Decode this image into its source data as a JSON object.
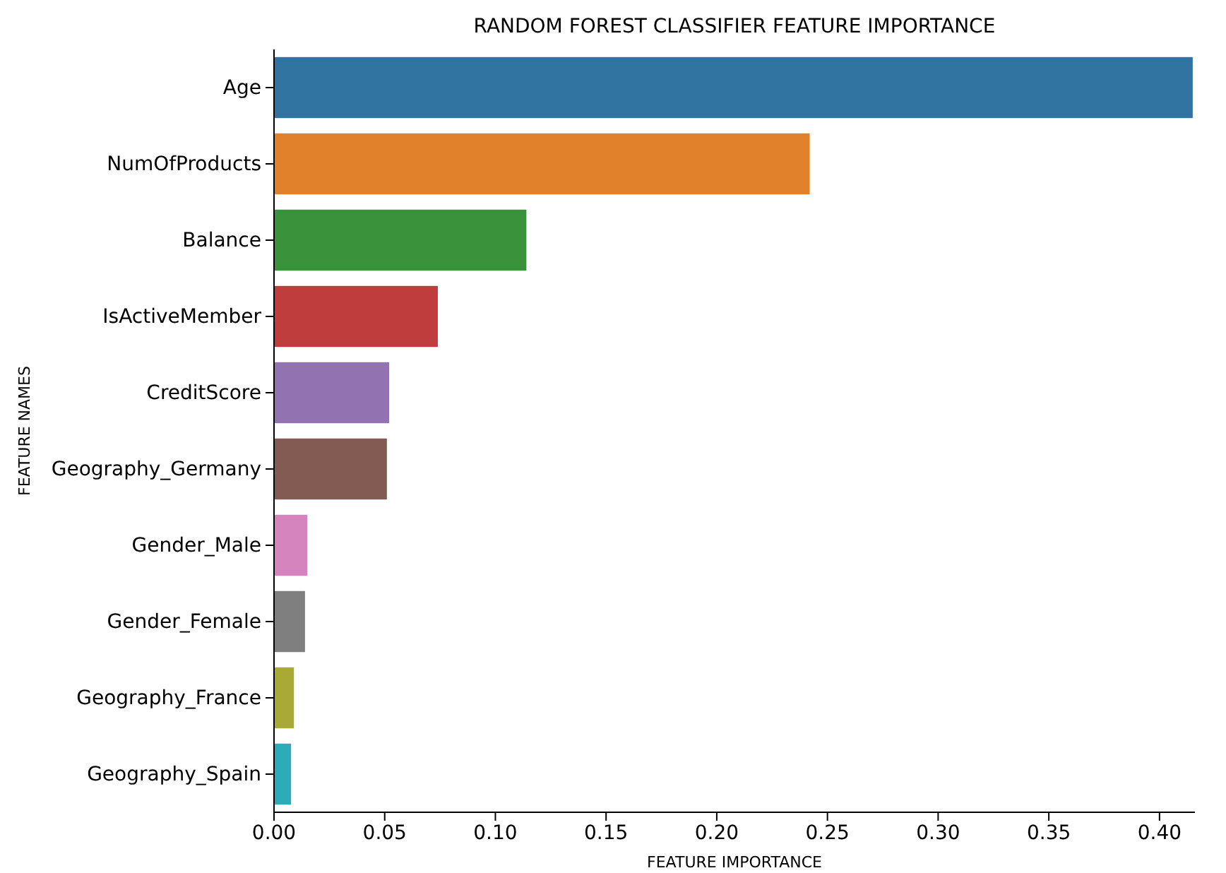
{
  "chart_data": {
    "type": "bar",
    "orientation": "horizontal",
    "title": "RANDOM FOREST CLASSIFIER FEATURE IMPORTANCE",
    "xlabel": "FEATURE IMPORTANCE",
    "ylabel": "FEATURE NAMES",
    "categories": [
      "Age",
      "NumOfProducts",
      "Balance",
      "IsActiveMember",
      "CreditScore",
      "Geography_Germany",
      "Gender_Male",
      "Gender_Female",
      "Geography_France",
      "Geography_Spain"
    ],
    "values": [
      0.415,
      0.242,
      0.114,
      0.074,
      0.052,
      0.051,
      0.015,
      0.014,
      0.009,
      0.0077
    ],
    "colors": [
      "#3274a1",
      "#e1812c",
      "#3a923a",
      "#c03d3e",
      "#9372b2",
      "#845b53",
      "#d684bd",
      "#7f7f7f",
      "#a9aa35",
      "#2eabb8"
    ],
    "xlim": [
      0,
      0.416
    ],
    "xticks": [
      {
        "value": 0,
        "label": "0.00"
      },
      {
        "value": 0.05,
        "label": "0.05"
      },
      {
        "value": 0.1,
        "label": "0.10"
      },
      {
        "value": 0.15,
        "label": "0.15"
      },
      {
        "value": 0.2,
        "label": "0.20"
      },
      {
        "value": 0.25,
        "label": "0.25"
      },
      {
        "value": 0.3,
        "label": "0.30"
      },
      {
        "value": 0.35,
        "label": "0.35"
      },
      {
        "value": 0.4,
        "label": "0.40"
      }
    ]
  }
}
